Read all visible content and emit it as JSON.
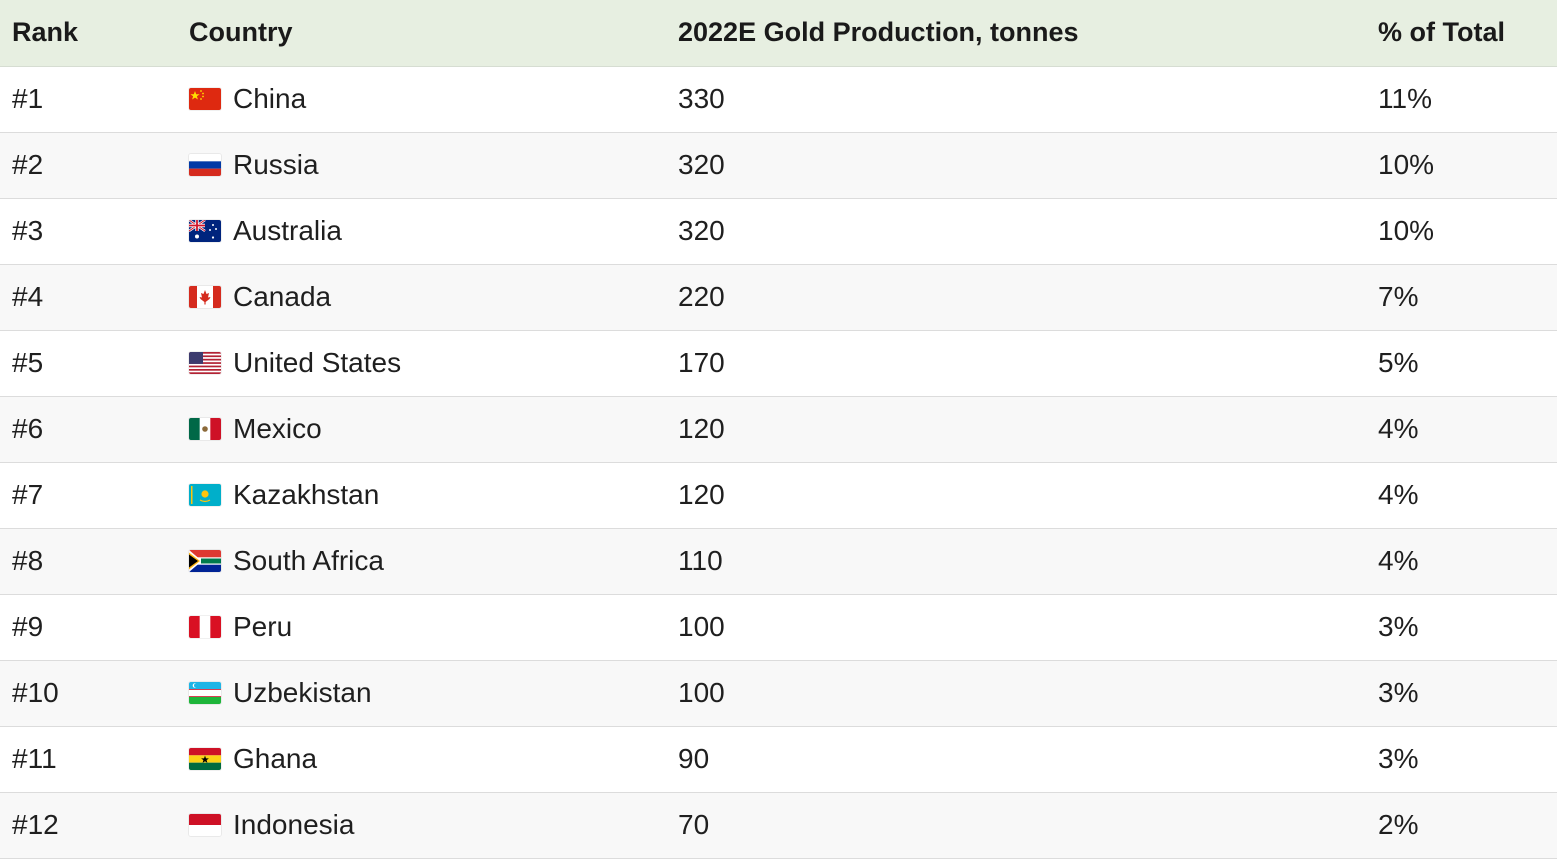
{
  "table": {
    "headers": {
      "rank": "Rank",
      "country": "Country",
      "production": "2022E Gold Production, tonnes",
      "share": "% of Total"
    },
    "rows": [
      {
        "rank": "#1",
        "country": "China",
        "flag": "china-flag-icon",
        "production": "330",
        "share": "11%"
      },
      {
        "rank": "#2",
        "country": "Russia",
        "flag": "russia-flag-icon",
        "production": "320",
        "share": "10%"
      },
      {
        "rank": "#3",
        "country": "Australia",
        "flag": "australia-flag-icon",
        "production": "320",
        "share": "10%"
      },
      {
        "rank": "#4",
        "country": "Canada",
        "flag": "canada-flag-icon",
        "production": "220",
        "share": "7%"
      },
      {
        "rank": "#5",
        "country": "United States",
        "flag": "usa-flag-icon",
        "production": "170",
        "share": "5%"
      },
      {
        "rank": "#6",
        "country": "Mexico",
        "flag": "mexico-flag-icon",
        "production": "120",
        "share": "4%"
      },
      {
        "rank": "#7",
        "country": "Kazakhstan",
        "flag": "kazakhstan-flag-icon",
        "production": "120",
        "share": "4%"
      },
      {
        "rank": "#8",
        "country": "South Africa",
        "flag": "south-africa-flag-icon",
        "production": "110",
        "share": "4%"
      },
      {
        "rank": "#9",
        "country": "Peru",
        "flag": "peru-flag-icon",
        "production": "100",
        "share": "3%"
      },
      {
        "rank": "#10",
        "country": "Uzbekistan",
        "flag": "uzbekistan-flag-icon",
        "production": "100",
        "share": "3%"
      },
      {
        "rank": "#11",
        "country": "Ghana",
        "flag": "ghana-flag-icon",
        "production": "90",
        "share": "3%"
      },
      {
        "rank": "#12",
        "country": "Indonesia",
        "flag": "indonesia-flag-icon",
        "production": "70",
        "share": "2%"
      }
    ]
  },
  "colors": {
    "header_bg": "#e7efe1",
    "row_alt_bg": "#f8f8f8",
    "border": "#dcdcdc"
  }
}
